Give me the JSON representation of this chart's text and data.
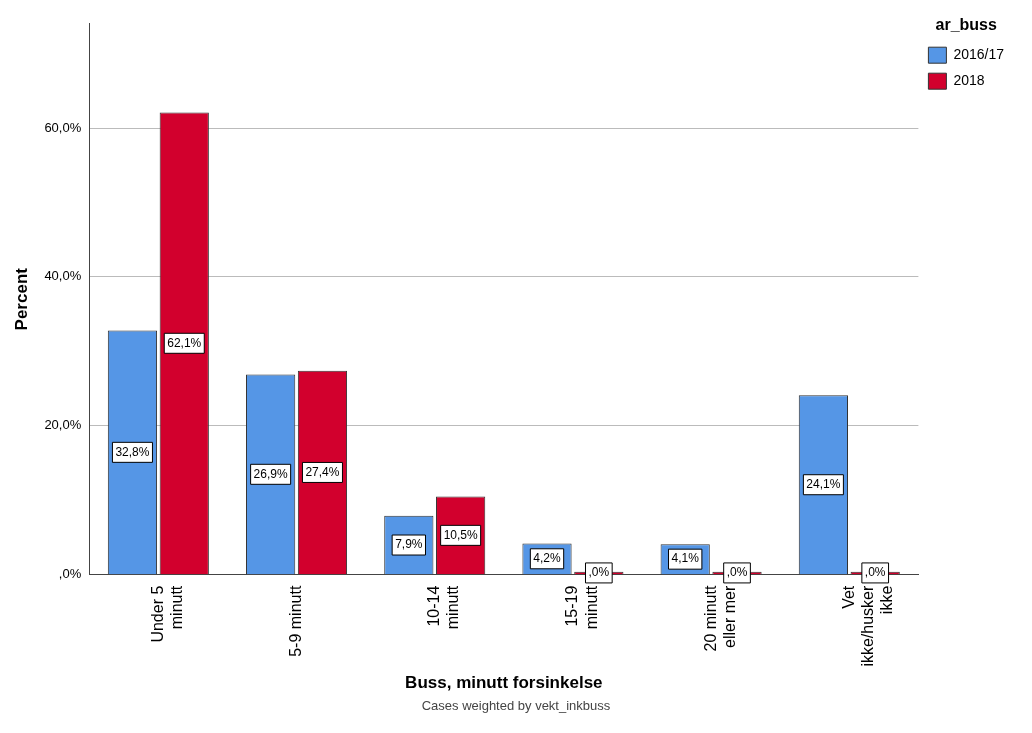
{
  "chart_data": {
    "type": "bar",
    "xlabel": "Buss, minutt forsinkelse",
    "ylabel": "Percent",
    "legend_title": "ar_buss",
    "categories": [
      "Under 5 minutt",
      "5-9 minutt",
      "10-14 minutt",
      "15-19 minutt",
      "20 minutt eller mer",
      "Vet ikke/husker ikke"
    ],
    "series": [
      {
        "name": "2016/17",
        "color": "#5596e6",
        "values": [
          32.8,
          26.9,
          7.9,
          4.2,
          4.1,
          24.1
        ],
        "value_labels": [
          "32,8%",
          "26,9%",
          "7,9%",
          "4,2%",
          "4,1%",
          "24,1%"
        ]
      },
      {
        "name": "2018",
        "color": "#d2002d",
        "values": [
          62.1,
          27.4,
          10.5,
          0,
          0,
          0
        ],
        "value_labels": [
          "62,1%",
          "27,4%",
          "10,5%",
          ",0%",
          ",0%",
          ",0%"
        ]
      }
    ],
    "ylim": [
      0,
      74
    ],
    "yticks": [
      {
        "value": 0,
        "label": ",0%"
      },
      {
        "value": 20,
        "label": "20,0%"
      },
      {
        "value": 40,
        "label": "40,0%"
      },
      {
        "value": 60,
        "label": "60,0%"
      }
    ],
    "grid": "y",
    "legend": "top right",
    "annotations": [
      "Cases weighted by vekt_inkbuss"
    ]
  }
}
